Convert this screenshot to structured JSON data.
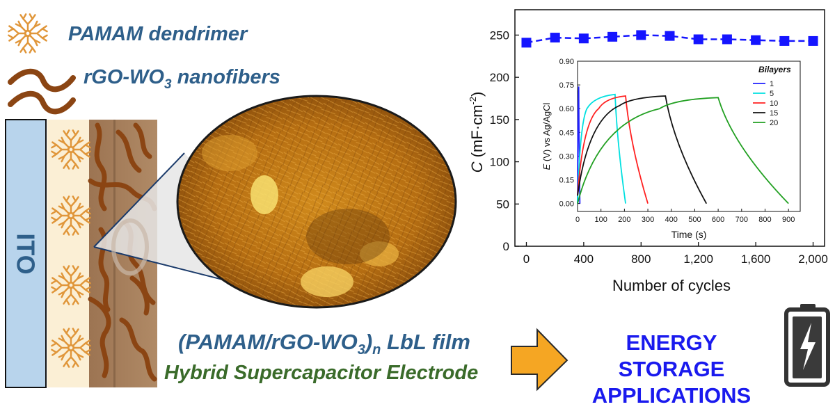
{
  "legend": {
    "dendrimer_label": "PAMAM dendrimer",
    "nanofiber_label_prefix": "rGO-WO",
    "nanofiber_label_sub": "3",
    "nanofiber_label_suffix": " nanofibers"
  },
  "electrode": {
    "substrate_label": "ITO"
  },
  "film": {
    "title_prefix": "(PAMAM/rGO-WO",
    "title_sub1": "3",
    "title_mid": ")",
    "title_sub2": "n",
    "title_suffix": " LbL film",
    "subtitle": "Hybrid Supercapacitor Electrode"
  },
  "application": {
    "line1": "ENERGY STORAGE",
    "line2": "APPLICATIONS"
  },
  "colors": {
    "dendrimer": "#e0963a",
    "nanofiber": "#8b4513",
    "ito": "#b8d4ec",
    "arrow": "#f5a623",
    "series_main": "#1515ff"
  },
  "chart_data": [
    {
      "type": "line",
      "xlabel": "Number of cycles",
      "ylabel_symbol": "C",
      "ylabel_units": "(mF·cm",
      "ylabel_exp": "-2",
      "ylabel_close": ")",
      "xlim": [
        0,
        2000
      ],
      "ylim": [
        0,
        280
      ],
      "xticks": [
        0,
        400,
        800,
        1200,
        1600,
        2000
      ],
      "xtick_labels": [
        "0",
        "400",
        "800",
        "1,200",
        "1,600",
        "2,000"
      ],
      "yticks": [
        0,
        50,
        100,
        150,
        200,
        250
      ],
      "series": [
        {
          "color": "#1515ff",
          "x": [
            0,
            200,
            400,
            600,
            800,
            1000,
            1200,
            1400,
            1600,
            1800,
            2000
          ],
          "y": [
            241,
            247,
            246,
            248,
            250,
            249,
            245,
            245,
            244,
            243,
            243
          ]
        }
      ]
    },
    {
      "type": "line",
      "xlabel": "Time (s)",
      "ylabel": "E (V) vs Ag/AgCl",
      "ylabel_symbol": "E",
      "ylabel_rest": " (V) vs Ag/AgCl",
      "xlim": [
        0,
        950
      ],
      "ylim": [
        -0.05,
        0.9
      ],
      "xticks": [
        0,
        100,
        200,
        300,
        400,
        500,
        600,
        700,
        800,
        900
      ],
      "yticks": [
        0.0,
        0.15,
        0.3,
        0.45,
        0.6,
        0.75,
        0.9
      ],
      "ytick_labels": [
        "0.00",
        "0.15",
        "0.30",
        "0.45",
        "0.60",
        "0.75",
        "0.90"
      ],
      "legend_title": "Bilayers",
      "legend_position": "top-right",
      "series": [
        {
          "name": "1",
          "color": "#2020ff",
          "x": [
            0,
            5,
            10
          ],
          "y": [
            0.0,
            0.74,
            0.0
          ]
        },
        {
          "name": "5",
          "color": "#00e0e0",
          "x": [
            0,
            40,
            160,
            205
          ],
          "y": [
            0.0,
            0.6,
            0.69,
            0.0
          ]
        },
        {
          "name": "10",
          "color": "#ff2020",
          "x": [
            0,
            90,
            205,
            300
          ],
          "y": [
            0.05,
            0.6,
            0.68,
            0.0
          ]
        },
        {
          "name": "15",
          "color": "#111111",
          "x": [
            0,
            180,
            375,
            550
          ],
          "y": [
            0.05,
            0.62,
            0.68,
            0.0
          ]
        },
        {
          "name": "20",
          "color": "#22a022",
          "x": [
            0,
            350,
            600,
            900
          ],
          "y": [
            0.0,
            0.6,
            0.67,
            0.0
          ]
        }
      ]
    }
  ]
}
